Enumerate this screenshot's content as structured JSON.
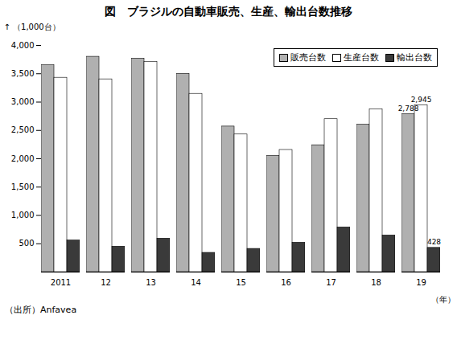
{
  "chart_data": {
    "type": "bar",
    "title": "図　ブラジルの自動車販売、生産、輸出台数推移",
    "ylabel": "（1,000台）",
    "xlabel": "（年）",
    "caption": "（出所）Anfavea",
    "categories": [
      "2011",
      "12",
      "13",
      "14",
      "15",
      "16",
      "17",
      "18",
      "19"
    ],
    "series": [
      {
        "name": "販売台数",
        "color": "#b0b0b0",
        "values": [
          3650,
          3800,
          3767,
          3498,
          2569,
          2050,
          2239,
          2601,
          2788
        ]
      },
      {
        "name": "生産台数",
        "color": "#ffffff",
        "values": [
          3430,
          3402,
          3712,
          3146,
          2429,
          2156,
          2699,
          2873,
          2945
        ]
      },
      {
        "name": "輸出台数",
        "color": "#3a3a3a",
        "values": [
          558,
          449,
          591,
          340,
          410,
          519,
          789,
          647,
          428
        ]
      }
    ],
    "ylim": [
      0,
      4000
    ],
    "yticks": [
      500,
      {
        "value": 1000,
        "label": "1,000"
      },
      {
        "value": 1500,
        "label": "1,500"
      },
      {
        "value": 2000,
        "label": "2,000"
      },
      {
        "value": 2500,
        "label": "2,500"
      },
      {
        "value": 3000,
        "label": "3,000"
      },
      {
        "value": 3500,
        "label": "3,500"
      },
      {
        "value": 4000,
        "label": "4,000"
      }
    ],
    "annotations": [
      {
        "text": "2,788",
        "category": "19",
        "series": "販売台数",
        "value": 2788
      },
      {
        "text": "2,945",
        "category": "19",
        "series": "生産台数",
        "value": 2945
      },
      {
        "text": "428",
        "category": "19",
        "series": "輸出台数",
        "value": 428
      }
    ],
    "grid": false,
    "legend": "upper right"
  }
}
